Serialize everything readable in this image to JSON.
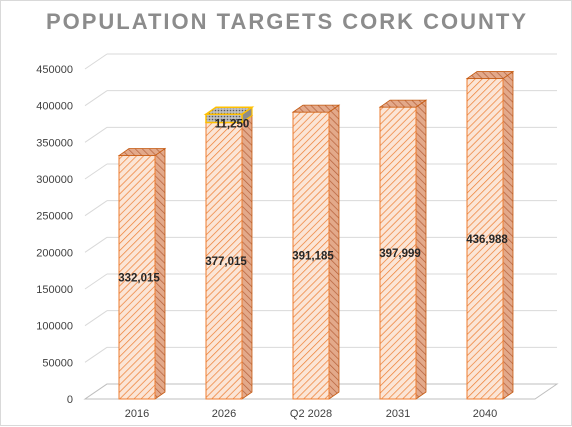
{
  "chart_data": {
    "type": "bar",
    "title": "POPULATION TARGETS CORK COUNTY",
    "categories": [
      "2016",
      "2026",
      "Q2 2028",
      "2031",
      "2040"
    ],
    "series": [
      {
        "values": [
          332015,
          377015,
          391185,
          397999,
          436988
        ]
      },
      {
        "values": [
          null,
          11250,
          null,
          null,
          null
        ]
      }
    ],
    "data_labels": [
      "332,015",
      "377,015",
      "391,185",
      "397,999",
      "436,988"
    ],
    "stack_labels": [
      "",
      "11,250",
      "",
      "",
      ""
    ],
    "ylim": [
      0,
      450000
    ],
    "yticks": [
      0,
      50000,
      100000,
      150000,
      200000,
      250000,
      300000,
      350000,
      400000,
      450000
    ],
    "grid": true,
    "style": "3d-column",
    "colors": {
      "bar_fill": "#fbe5d6",
      "bar_hatch": "#ed7d31",
      "bar_side": "#c9886a",
      "stack_fill": "#a5a5a5",
      "stack_border": "#ffc000",
      "grid": "#d9d9d9"
    }
  }
}
